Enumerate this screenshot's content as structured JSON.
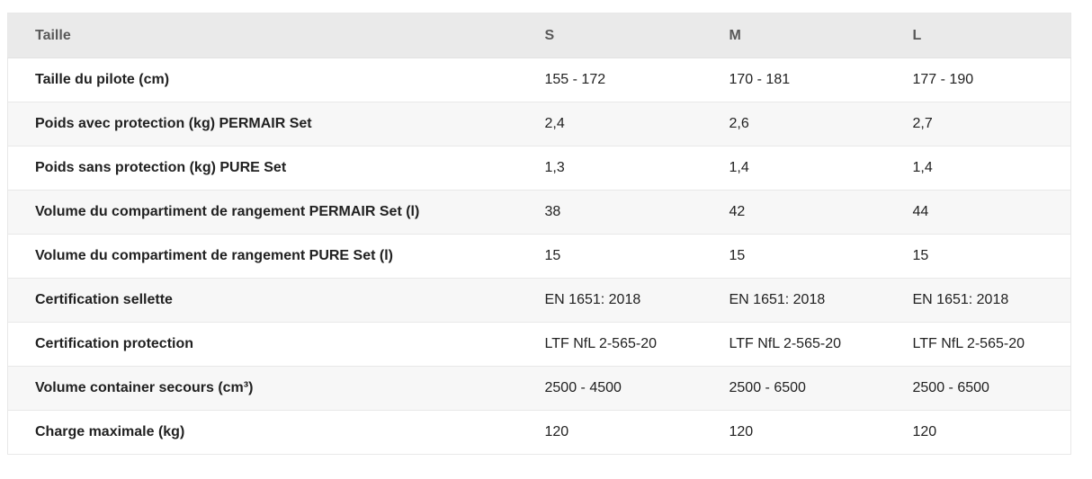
{
  "table": {
    "header": {
      "label": "Taille",
      "columns": [
        "S",
        "M",
        "L"
      ]
    },
    "rows": [
      {
        "label": "Taille du pilote (cm)",
        "values": [
          "155 - 172",
          "170 - 181",
          "177 - 190"
        ]
      },
      {
        "label": "Poids avec protection (kg) PERMAIR Set",
        "values": [
          "2,4",
          "2,6",
          "2,7"
        ]
      },
      {
        "label": "Poids sans protection (kg) PURE Set",
        "values": [
          "1,3",
          "1,4",
          "1,4"
        ]
      },
      {
        "label": "Volume du compartiment de rangement PERMAIR Set (l)",
        "values": [
          "38",
          "42",
          "44"
        ]
      },
      {
        "label": "Volume du compartiment de rangement PURE Set (l)",
        "values": [
          "15",
          "15",
          "15"
        ]
      },
      {
        "label": "Certification sellette",
        "values": [
          "EN 1651: 2018",
          "EN 1651: 2018",
          "EN 1651: 2018"
        ]
      },
      {
        "label": "Certification protection",
        "values": [
          "LTF NfL 2-565-20",
          "LTF NfL 2-565-20",
          "LTF NfL 2-565-20"
        ]
      },
      {
        "label": "Volume container secours (cm³)",
        "values": [
          "2500 - 4500",
          "2500 - 6500",
          "2500 - 6500"
        ]
      },
      {
        "label": "Charge maximale (kg)",
        "values": [
          "120",
          "120",
          "120"
        ]
      }
    ],
    "colors": {
      "header_bg": "#eaeaea",
      "stripe_bg": "#f7f7f7",
      "row_bg": "#ffffff",
      "border": "#e8e8e8",
      "header_text": "#595959",
      "label_text": "#212121",
      "value_text": "#212121"
    }
  }
}
